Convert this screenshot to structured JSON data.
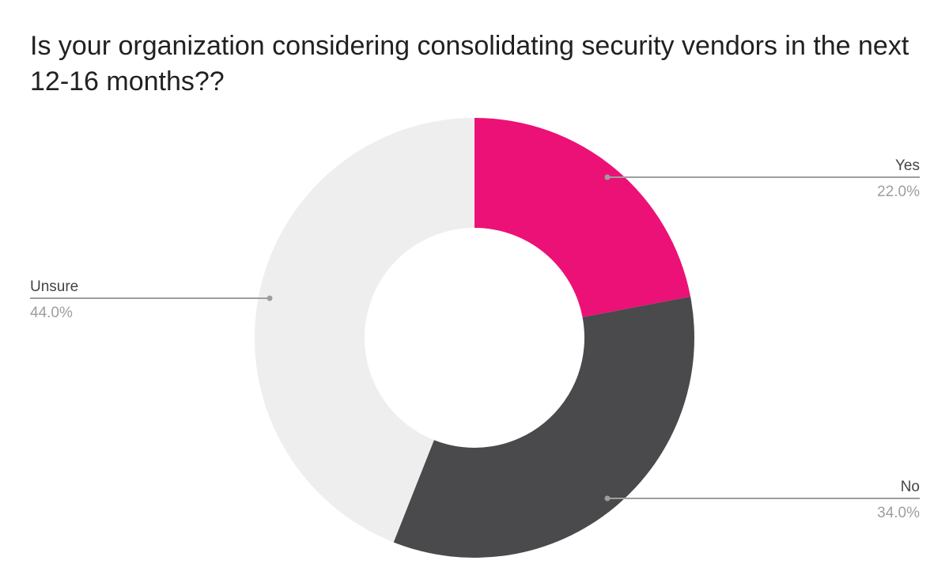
{
  "chart_data": {
    "type": "pie",
    "donut": true,
    "title": "Is your organization considering consolidating security vendors in the next 12-16 months??",
    "slices": [
      {
        "label": "Yes",
        "value": 22.0,
        "display": "22.0%",
        "color": "#ec1177"
      },
      {
        "label": "No",
        "value": 34.0,
        "display": "34.0%",
        "color": "#4a494b"
      },
      {
        "label": "Unsure",
        "value": 44.0,
        "display": "44.0%",
        "color": "#eeeeee"
      }
    ],
    "start": "top",
    "direction": "clockwise",
    "legend": "none",
    "colors": {
      "leader_line": "#9e9e9e",
      "name_text": "#444444",
      "pct_text": "#9e9e9e"
    }
  }
}
